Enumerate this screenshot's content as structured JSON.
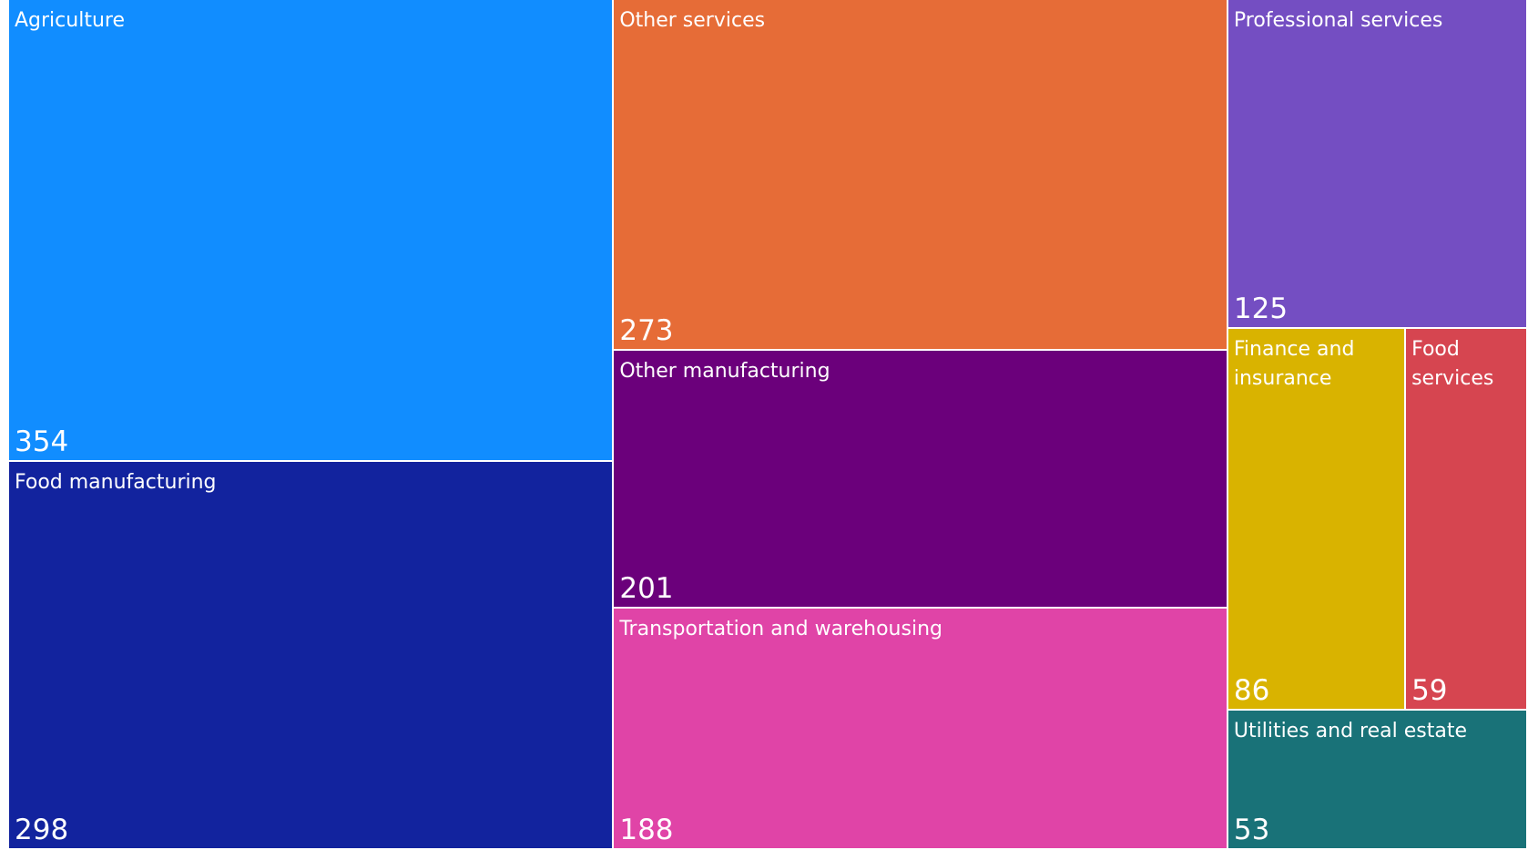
{
  "chart_data": {
    "type": "treemap",
    "title": "",
    "items": [
      {
        "label": "Agriculture",
        "value": 354,
        "color": "#118DFF"
      },
      {
        "label": "Food manufacturing",
        "value": 298,
        "color": "#12239E"
      },
      {
        "label": "Other services",
        "value": 273,
        "color": "#E66C37"
      },
      {
        "label": "Other manufacturing",
        "value": 201,
        "color": "#6B007B"
      },
      {
        "label": "Transportation and warehousing",
        "value": 188,
        "color": "#E044A7"
      },
      {
        "label": "Professional services",
        "value": 125,
        "color": "#744EC2"
      },
      {
        "label": "Finance and insurance",
        "value": 86,
        "color": "#D9B300"
      },
      {
        "label": "Food services",
        "value": 59,
        "color": "#D64550"
      },
      {
        "label": "Utilities and real estate",
        "value": 53,
        "color": "#197278"
      }
    ]
  }
}
